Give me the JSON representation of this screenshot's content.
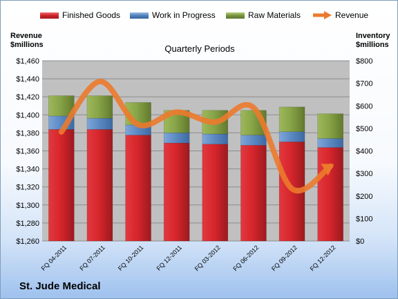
{
  "legend": {
    "finished": "Finished Goods",
    "wip": "Work in Progress",
    "raw": "Raw Materials",
    "revenue": "Revenue"
  },
  "left_axis_title_1": "Revenue",
  "left_axis_title_2": "$millions",
  "right_axis_title_1": "Inventory",
  "right_axis_title_2": "$millions",
  "period_title": "Quarterly Periods",
  "company": "St. Jude Medical",
  "colors": {
    "finished": "#cc2229",
    "wip": "#4f81bd",
    "raw": "#77933c",
    "revenue": "#ec7a2c",
    "plot_bg": "#c0c0c0"
  },
  "chart_data": {
    "type": "bar",
    "stacked": true,
    "categories": [
      "FQ 04-2011",
      "FQ 07-2011",
      "FQ 10-2011",
      "FQ 12-2011",
      "FQ 03-2012",
      "FQ 06-2012",
      "FQ 09-2012",
      "FQ 12-2012"
    ],
    "series": [
      {
        "name": "Finished Goods",
        "values": [
          495,
          495,
          470,
          435,
          430,
          425,
          440,
          415
        ],
        "axis": "right"
      },
      {
        "name": "Work in Progress",
        "values": [
          60,
          50,
          45,
          45,
          45,
          45,
          45,
          40
        ],
        "axis": "right"
      },
      {
        "name": "Raw Materials",
        "values": [
          90,
          100,
          100,
          100,
          105,
          110,
          110,
          110
        ],
        "axis": "right"
      },
      {
        "name": "Revenue",
        "type": "line",
        "values": [
          1381,
          1437,
          1389,
          1403,
          1392,
          1408,
          1318,
          1343
        ],
        "axis": "left"
      }
    ],
    "left_axis": {
      "min": 1260,
      "max": 1460,
      "step": 20,
      "ticks": [
        "$1,260",
        "$1,280",
        "$1,300",
        "$1,320",
        "$1,340",
        "$1,360",
        "$1,380",
        "$1,400",
        "$1,420",
        "$1,440",
        "$1,460"
      ]
    },
    "right_axis": {
      "min": 0,
      "max": 800,
      "step": 100,
      "ticks": [
        "$0",
        "$100",
        "$200",
        "$300",
        "$400",
        "$500",
        "$600",
        "$700",
        "$800"
      ]
    },
    "grid": "horizontal",
    "legend_position": "top"
  }
}
